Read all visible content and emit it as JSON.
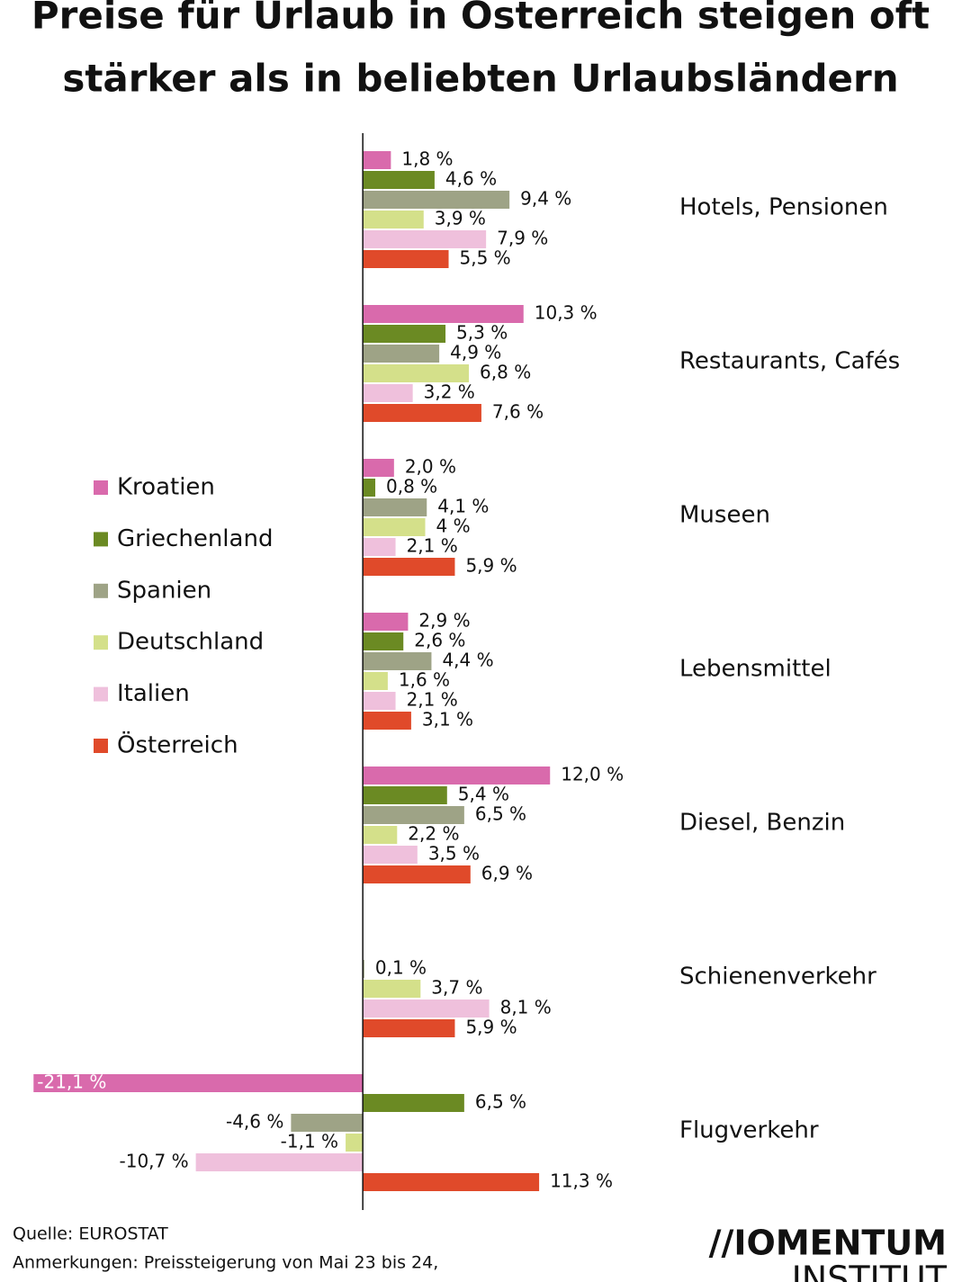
{
  "chart_data": {
    "type": "hbar",
    "title": [
      "Preise für Urlaub in Österreich steigen oft",
      "stärker als in beliebten Urlaubsländern"
    ],
    "categories": [
      "Hotels, Pensionen",
      "Restaurants, Cafés",
      "Museen",
      "Lebensmittel",
      "Diesel, Benzin",
      "Schienenverkehr",
      "Flugverkehr"
    ],
    "xlim": [
      -23.25,
      38.4
    ],
    "series": [
      {
        "name": "Kroatien",
        "color": "#d96aac",
        "values": [
          1.8,
          10.3,
          2.0,
          2.9,
          12.0,
          null,
          -21.1
        ],
        "value_labels": [
          "1,8 %",
          "10,3 %",
          "2,0 %",
          "2,9 %",
          "12,0 %",
          null,
          "-21,1 %"
        ]
      },
      {
        "name": "Griechenland",
        "color": "#6b8a23",
        "values": [
          4.6,
          5.3,
          0.8,
          2.6,
          5.4,
          null,
          6.5
        ],
        "value_labels": [
          "4,6 %",
          "5,3 %",
          "0,8 %",
          "2,6 %",
          "5,4 %",
          null,
          "6,5 %"
        ]
      },
      {
        "name": "Spanien",
        "color": "#9ea386",
        "values": [
          9.4,
          4.9,
          4.1,
          4.4,
          6.5,
          0.1,
          -4.6
        ],
        "value_labels": [
          "9,4 %",
          "4,9 %",
          "4,1 %",
          "4,4 %",
          "6,5 %",
          "0,1 %",
          "-4,6 %"
        ]
      },
      {
        "name": "Deutschland",
        "color": "#d4e08a",
        "values": [
          3.9,
          6.8,
          4,
          1.6,
          2.2,
          3.7,
          -1.1
        ],
        "value_labels": [
          "3,9 %",
          "6,8 %",
          "4 %",
          "1,6 %",
          "2,2 %",
          "3,7 %",
          "-1,1 %"
        ]
      },
      {
        "name": "Italien",
        "color": "#efc0dc",
        "values": [
          7.9,
          3.2,
          2.1,
          2.1,
          3.5,
          8.1,
          -10.7
        ],
        "value_labels": [
          "7,9 %",
          "3,2 %",
          "2,1 %",
          "2,1 %",
          "3,5 %",
          "8,1 %",
          "-10,7 %"
        ]
      },
      {
        "name": "Österreich",
        "color": "#e04a2a",
        "values": [
          5.5,
          7.6,
          5.9,
          3.1,
          6.9,
          5.9,
          11.3
        ],
        "value_labels": [
          "5,5 %",
          "7,6 %",
          "5,9 %",
          "3,1 %",
          "6,9 %",
          "5,9 %",
          "11,3 %"
        ]
      }
    ],
    "source": "Quelle: EUROSTAT",
    "note": "Anmerkungen: Preissteigerung von Mai 23 bis 24,",
    "logo": [
      "//IOMENTUM",
      "INSTITUT"
    ]
  }
}
